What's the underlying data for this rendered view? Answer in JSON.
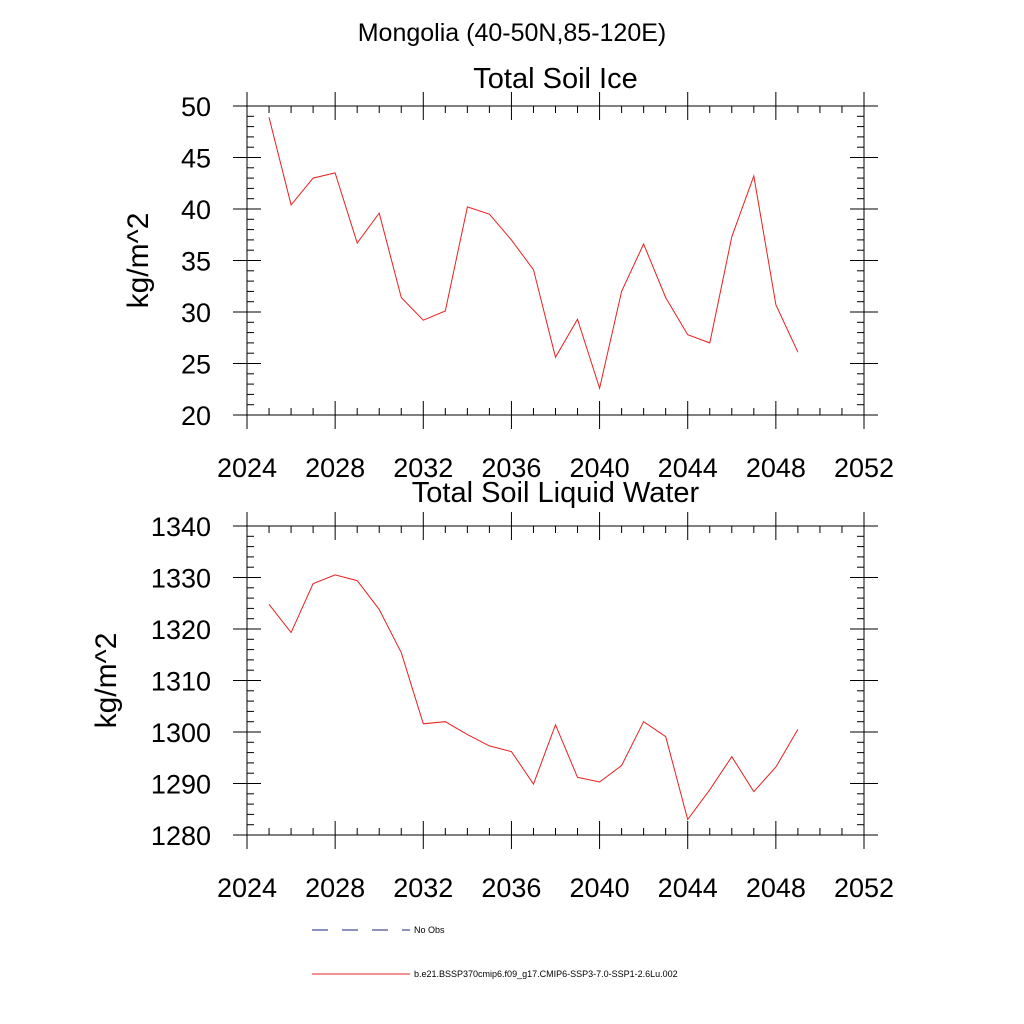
{
  "figure_title": "Mongolia (40-50N,85-120E)",
  "colors": {
    "series": "#e8201e",
    "obs": "#1a237e",
    "axis": "#000000"
  },
  "legend": [
    {
      "label": "No Obs",
      "style": "dashed",
      "color": "#1a237e"
    },
    {
      "label": "b.e21.BSSP370cmip6.f09_g17.CMIP6-SSP3-7.0-SSP1-2.6Lu.002",
      "style": "solid",
      "color": "#e8201e"
    }
  ],
  "chart_data": [
    {
      "type": "line",
      "title": "Total Soil Ice",
      "xlabel": "",
      "ylabel": "kg/m^2",
      "xlim": [
        2024,
        2052
      ],
      "ylim": [
        20,
        50
      ],
      "x_ticks": [
        2024,
        2028,
        2032,
        2036,
        2040,
        2044,
        2048,
        2052
      ],
      "y_ticks": [
        20,
        25,
        30,
        35,
        40,
        45,
        50
      ],
      "grid": false,
      "series": [
        {
          "x": [
            2025,
            2026,
            2027,
            2028,
            2029,
            2030,
            2031,
            2032,
            2033,
            2034,
            2035,
            2036,
            2037,
            2038,
            2039,
            2040,
            2041,
            2042,
            2043,
            2044,
            2045,
            2046,
            2047,
            2048,
            2049
          ],
          "values": [
            48.9,
            40.4,
            43.0,
            43.5,
            36.7,
            39.6,
            31.4,
            29.2,
            30.1,
            40.2,
            39.5,
            37.0,
            34.1,
            25.6,
            29.3,
            22.6,
            32.0,
            36.6,
            31.4,
            27.8,
            27.0,
            37.3,
            43.2,
            30.7,
            26.1
          ]
        }
      ]
    },
    {
      "type": "line",
      "title": "Total Soil Liquid Water",
      "xlabel": "",
      "ylabel": "kg/m^2",
      "xlim": [
        2024,
        2052
      ],
      "ylim": [
        1280,
        1340
      ],
      "x_ticks": [
        2024,
        2028,
        2032,
        2036,
        2040,
        2044,
        2048,
        2052
      ],
      "y_ticks": [
        1280,
        1290,
        1300,
        1310,
        1320,
        1330,
        1340
      ],
      "grid": false,
      "series": [
        {
          "x": [
            2025,
            2026,
            2027,
            2028,
            2029,
            2030,
            2031,
            2032,
            2033,
            2034,
            2035,
            2036,
            2037,
            2038,
            2039,
            2040,
            2041,
            2042,
            2043,
            2044,
            2045,
            2046,
            2047,
            2048,
            2049
          ],
          "values": [
            1324.8,
            1319.3,
            1328.8,
            1330.5,
            1329.4,
            1323.8,
            1315.4,
            1301.6,
            1302.0,
            1299.5,
            1297.3,
            1296.2,
            1289.9,
            1301.4,
            1291.2,
            1290.3,
            1293.5,
            1302.0,
            1299.1,
            1283.0,
            1288.8,
            1295.2,
            1288.4,
            1293.2,
            1300.5
          ]
        }
      ]
    }
  ]
}
